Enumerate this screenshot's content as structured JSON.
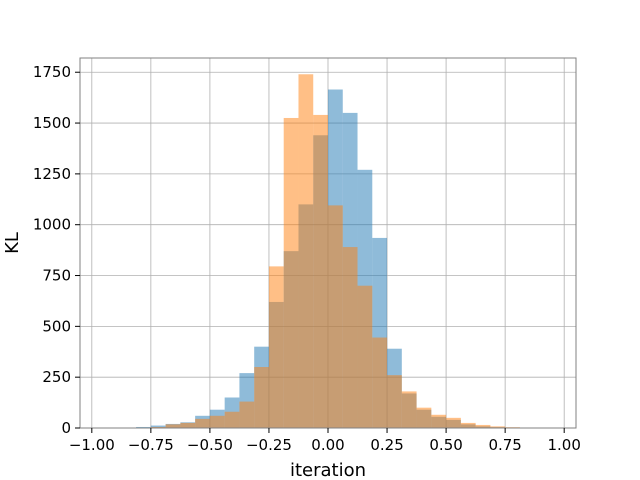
{
  "chart_data": {
    "type": "bar",
    "subtype": "overlapping-histogram",
    "title": "",
    "xlabel": "iteration",
    "ylabel": "KL",
    "xlim": [
      -1.05,
      1.05
    ],
    "ylim": [
      0,
      1820
    ],
    "grid": true,
    "legend": "none",
    "bin_width": 0.0625,
    "xticks": [
      -1.0,
      -0.75,
      -0.5,
      -0.25,
      0.0,
      0.25,
      0.5,
      0.75,
      1.0
    ],
    "xtick_labels": [
      "−1.00",
      "−0.75",
      "−0.50",
      "−0.25",
      "0.00",
      "0.25",
      "0.50",
      "0.75",
      "1.00"
    ],
    "yticks": [
      0,
      250,
      500,
      750,
      1000,
      1250,
      1500,
      1750
    ],
    "ytick_labels": [
      "0",
      "250",
      "500",
      "750",
      "1000",
      "1250",
      "1500",
      "1750"
    ],
    "series": [
      {
        "color": "#1f77b4",
        "opacity": 0.5,
        "bins": [
          [
            -0.8125,
            5
          ],
          [
            -0.75,
            12
          ],
          [
            -0.6875,
            20
          ],
          [
            -0.625,
            28
          ],
          [
            -0.5625,
            60
          ],
          [
            -0.5,
            90
          ],
          [
            -0.4375,
            150
          ],
          [
            -0.375,
            270
          ],
          [
            -0.3125,
            400
          ],
          [
            -0.25,
            620
          ],
          [
            -0.1875,
            870
          ],
          [
            -0.125,
            1100
          ],
          [
            -0.0625,
            1440
          ],
          [
            0.0,
            1665
          ],
          [
            0.0625,
            1550
          ],
          [
            0.125,
            1270
          ],
          [
            0.1875,
            935
          ],
          [
            0.25,
            390
          ],
          [
            0.3125,
            170
          ],
          [
            0.375,
            90
          ],
          [
            0.4375,
            55
          ],
          [
            0.5,
            40
          ],
          [
            0.5625,
            18
          ],
          [
            0.625,
            8
          ],
          [
            0.6875,
            4
          ]
        ]
      },
      {
        "color": "#ff7f0e",
        "opacity": 0.5,
        "bins": [
          [
            -0.75,
            5
          ],
          [
            -0.6875,
            18
          ],
          [
            -0.625,
            25
          ],
          [
            -0.5625,
            45
          ],
          [
            -0.5,
            60
          ],
          [
            -0.4375,
            80
          ],
          [
            -0.375,
            130
          ],
          [
            -0.3125,
            300
          ],
          [
            -0.25,
            795
          ],
          [
            -0.1875,
            1525
          ],
          [
            -0.125,
            1740
          ],
          [
            -0.0625,
            1540
          ],
          [
            0.0,
            1095
          ],
          [
            0.0625,
            890
          ],
          [
            0.125,
            700
          ],
          [
            0.1875,
            445
          ],
          [
            0.25,
            260
          ],
          [
            0.3125,
            180
          ],
          [
            0.375,
            100
          ],
          [
            0.4375,
            65
          ],
          [
            0.5,
            50
          ],
          [
            0.5625,
            25
          ],
          [
            0.625,
            15
          ],
          [
            0.6875,
            8
          ],
          [
            0.75,
            4
          ]
        ]
      }
    ]
  }
}
